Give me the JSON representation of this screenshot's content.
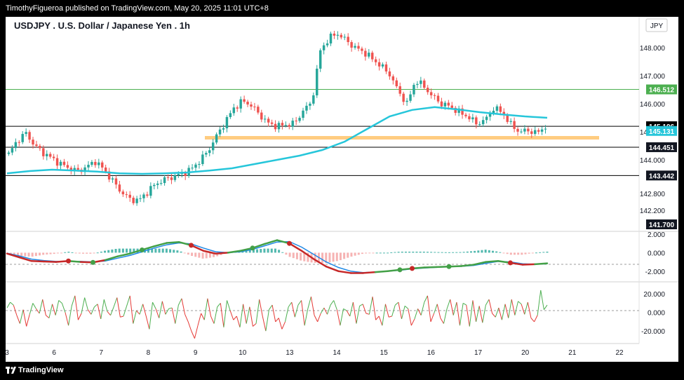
{
  "publisher_line": "TimothyFigueroa published on TradingView.com, May 20, 2025 11:01 UTC+8",
  "brand": "TradingView",
  "chart_data": {
    "type": "line",
    "title": "USDJPY . U.S. Dollar / Japanese Yen . 1h",
    "currency": "JPY",
    "x_tick_labels": [
      "3",
      "6",
      "7",
      "8",
      "9",
      "10",
      "13",
      "14",
      "15",
      "16",
      "17",
      "20",
      "21",
      "22"
    ],
    "price_ticks": [
      "148.000",
      "147.000",
      "146.000",
      "145.000",
      "144.000",
      "142.800",
      "142.200"
    ],
    "ylim": [
      141.6,
      149.0
    ],
    "close_series": [
      144.2,
      144.7,
      144.95,
      144.5,
      144.25,
      144.05,
      143.85,
      143.7,
      143.6,
      143.75,
      143.95,
      143.65,
      143.25,
      142.85,
      142.6,
      142.55,
      142.85,
      143.15,
      143.3,
      143.4,
      143.5,
      143.65,
      143.95,
      144.3,
      144.85,
      145.35,
      145.85,
      146.1,
      145.95,
      145.6,
      145.3,
      145.2,
      145.25,
      145.3,
      145.75,
      146.05,
      147.9,
      148.35,
      148.5,
      148.25,
      148.0,
      147.85,
      147.6,
      147.35,
      147.05,
      146.45,
      146.0,
      146.85,
      146.6,
      146.25,
      146.0,
      145.9,
      145.7,
      145.55,
      145.3,
      145.4,
      145.85,
      145.7,
      145.25,
      145.0,
      145.05,
      144.95,
      145.2
    ],
    "ema_series": [
      143.52,
      143.6,
      143.65,
      143.62,
      143.58,
      143.52,
      143.5,
      143.52,
      143.55,
      143.62,
      143.7,
      143.85,
      144.0,
      144.15,
      144.35,
      144.65,
      145.1,
      145.55,
      145.78,
      145.88,
      145.8,
      145.7,
      145.62,
      145.55,
      145.5
    ],
    "horizontal_levels": [
      {
        "price": "146.512",
        "color": "#4caf50"
      },
      {
        "price": "145.196",
        "color": "#000000"
      },
      {
        "price": "144.451",
        "color": "#000000"
      },
      {
        "price": "143.442",
        "color": "#000000"
      }
    ],
    "price_badges": [
      {
        "label": "145.196",
        "kind": "ema"
      },
      {
        "label": "145.131",
        "kind": "last"
      },
      {
        "label": "141.700",
        "kind": "dark"
      }
    ],
    "support_zone_price": 144.92,
    "macd": {
      "ticks": [
        "2.000",
        "0.000",
        "-2.000"
      ],
      "ylim": [
        -3.0,
        2.0
      ],
      "macd_line": [
        -0.1,
        -0.5,
        -0.9,
        -0.95,
        -1.0,
        -0.9,
        -1.0,
        -1.05,
        -0.8,
        -0.4,
        -0.1,
        0.3,
        0.7,
        1.05,
        1.15,
        0.8,
        0.2,
        -0.1,
        0.0,
        0.2,
        0.5,
        0.95,
        1.35,
        1.0,
        0.2,
        -0.7,
        -1.5,
        -2.0,
        -2.2,
        -2.2,
        -2.1,
        -2.0,
        -1.85,
        -1.7,
        -1.6,
        -1.55,
        -1.5,
        -1.45,
        -1.3,
        -1.0,
        -0.9,
        -1.1,
        -1.3,
        -1.25,
        -1.15
      ],
      "signal_line": [
        -0.05,
        -0.35,
        -0.7,
        -0.85,
        -0.95,
        -0.95,
        -0.95,
        -1.0,
        -0.9,
        -0.6,
        -0.3,
        0.1,
        0.5,
        0.85,
        1.05,
        0.95,
        0.5,
        0.1,
        0.0,
        0.1,
        0.35,
        0.75,
        1.15,
        1.2,
        0.6,
        -0.2,
        -1.0,
        -1.6,
        -2.0,
        -2.15,
        -2.1,
        -2.0,
        -1.9,
        -1.75,
        -1.65,
        -1.58,
        -1.52,
        -1.48,
        -1.38,
        -1.15,
        -0.95,
        -1.0,
        -1.2,
        -1.25,
        -1.2
      ],
      "cross_up_idx": [
        7,
        11,
        20,
        32,
        36
      ],
      "cross_down_idx": [
        5,
        15,
        23,
        33,
        41
      ]
    },
    "oscillator": {
      "ticks": [
        "20.000",
        "0.000",
        "-20.000"
      ],
      "ylim": [
        -32,
        30
      ],
      "values": [
        5,
        11,
        8,
        -3,
        -12,
        3,
        -15,
        -2,
        10,
        4,
        -1,
        14,
        -3,
        -6,
        9,
        -3,
        13,
        10,
        0,
        -14,
        7,
        18,
        -8,
        -1,
        16,
        3,
        -2,
        6,
        9,
        -7,
        14,
        1,
        -3,
        6,
        16,
        -5,
        -4,
        7,
        18,
        -12,
        2,
        -2,
        9,
        -4,
        -18,
        11,
        4,
        -6,
        12,
        -2,
        4,
        5,
        -12,
        8,
        15,
        -2,
        -10,
        -20,
        -28,
        -14,
        -1,
        -8,
        15,
        -4,
        -12,
        6,
        10,
        -16,
        13,
        2,
        -8,
        -4,
        -16,
        9,
        -12,
        6,
        -15,
        -12,
        14,
        -4,
        -20,
        3,
        8,
        -10,
        -6,
        -18,
        -10,
        6,
        11,
        -5,
        8,
        13,
        -14,
        4,
        17,
        -3,
        -10,
        -1,
        5,
        -2,
        8,
        13,
        3,
        -14,
        4,
        2,
        -4,
        11,
        -12,
        7,
        9,
        -1,
        -2,
        17,
        -8,
        -4,
        -14,
        9,
        -5,
        -4,
        8,
        11,
        -7,
        7,
        4,
        -14,
        -7,
        4,
        -3,
        11,
        18,
        -10,
        -1,
        9,
        -6,
        -12,
        4,
        14,
        -3,
        11,
        -14,
        10,
        8,
        -15,
        13,
        -10,
        7,
        -11,
        8,
        14,
        -1,
        -5,
        5,
        -8,
        9,
        -6,
        14,
        -3,
        12,
        9,
        -2,
        11,
        -6,
        -10,
        -3,
        24,
        3,
        8
      ]
    }
  }
}
